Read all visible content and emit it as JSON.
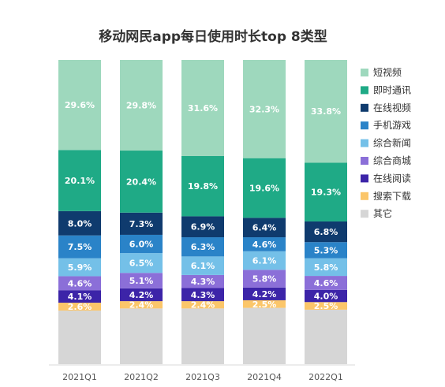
{
  "chart_data": {
    "type": "bar",
    "stacked": true,
    "percent_stacked": true,
    "title": "移动网民app每日使用时长top 8类型",
    "categories": [
      "2021Q1",
      "2021Q2",
      "2021Q3",
      "2021Q4",
      "2022Q1"
    ],
    "ylim": [
      0,
      100
    ],
    "grid": false,
    "legend_position": "right",
    "series": [
      {
        "name": "其它",
        "color": "#d6d6d6",
        "label_color": "#333333",
        "values": [
          null,
          null,
          null,
          null,
          null
        ]
      },
      {
        "name": "搜索下载",
        "color": "#fbc66a",
        "label_color": "#ffffff",
        "values": [
          2.6,
          2.4,
          2.4,
          2.5,
          2.5
        ]
      },
      {
        "name": "在线阅读",
        "color": "#3c24a8",
        "label_color": "#ffffff",
        "values": [
          4.1,
          4.2,
          4.3,
          4.2,
          4.0
        ]
      },
      {
        "name": "综合商城",
        "color": "#8b6fd8",
        "label_color": "#ffffff",
        "values": [
          4.6,
          5.1,
          4.3,
          5.8,
          4.6
        ]
      },
      {
        "name": "综合新闻",
        "color": "#74c0e8",
        "label_color": "#ffffff",
        "values": [
          5.9,
          6.5,
          6.1,
          6.1,
          5.8
        ]
      },
      {
        "name": "手机游戏",
        "color": "#2a83c8",
        "label_color": "#ffffff",
        "values": [
          7.5,
          6.0,
          6.3,
          4.6,
          5.3
        ]
      },
      {
        "name": "在线视频",
        "color": "#0f3b6e",
        "label_color": "#ffffff",
        "values": [
          8.0,
          7.3,
          6.9,
          6.4,
          6.8
        ]
      },
      {
        "name": "即时通讯",
        "color": "#1faa86",
        "label_color": "#ffffff",
        "values": [
          20.1,
          20.4,
          19.8,
          19.6,
          19.3
        ]
      },
      {
        "name": "短视频",
        "color": "#9ed8bd",
        "label_color": "#ffffff",
        "values": [
          29.6,
          29.8,
          31.6,
          32.3,
          33.8
        ]
      }
    ],
    "data_label_suffix": "%"
  }
}
